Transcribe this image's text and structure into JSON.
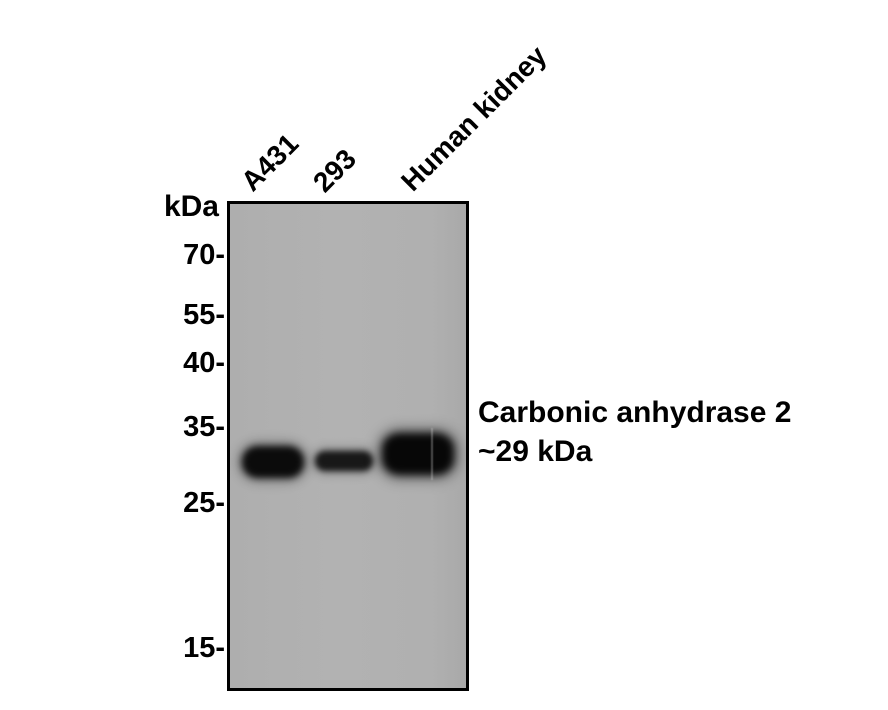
{
  "figure": {
    "type": "western-blot",
    "unit_label": "kDa",
    "lane_labels": [
      "A431",
      "293",
      "Human kidney"
    ],
    "mw_markers": [
      "70-",
      "55-",
      "40-",
      "35-",
      "25-",
      "15-"
    ],
    "annotation": {
      "protein": "Carbonic anhydrase 2",
      "weight": "~29 kDa"
    },
    "bands": [
      {
        "lane": "A431",
        "position_kda": "~29",
        "intensity": "strong"
      },
      {
        "lane": "293",
        "position_kda": "~29",
        "intensity": "medium"
      },
      {
        "lane": "Human kidney",
        "position_kda": "~29",
        "intensity": "strong"
      }
    ],
    "colors": {
      "membrane": "#b0b0b0",
      "band": "#0a0a0a",
      "border": "#000000",
      "background": "#ffffff",
      "text": "#000000"
    }
  }
}
